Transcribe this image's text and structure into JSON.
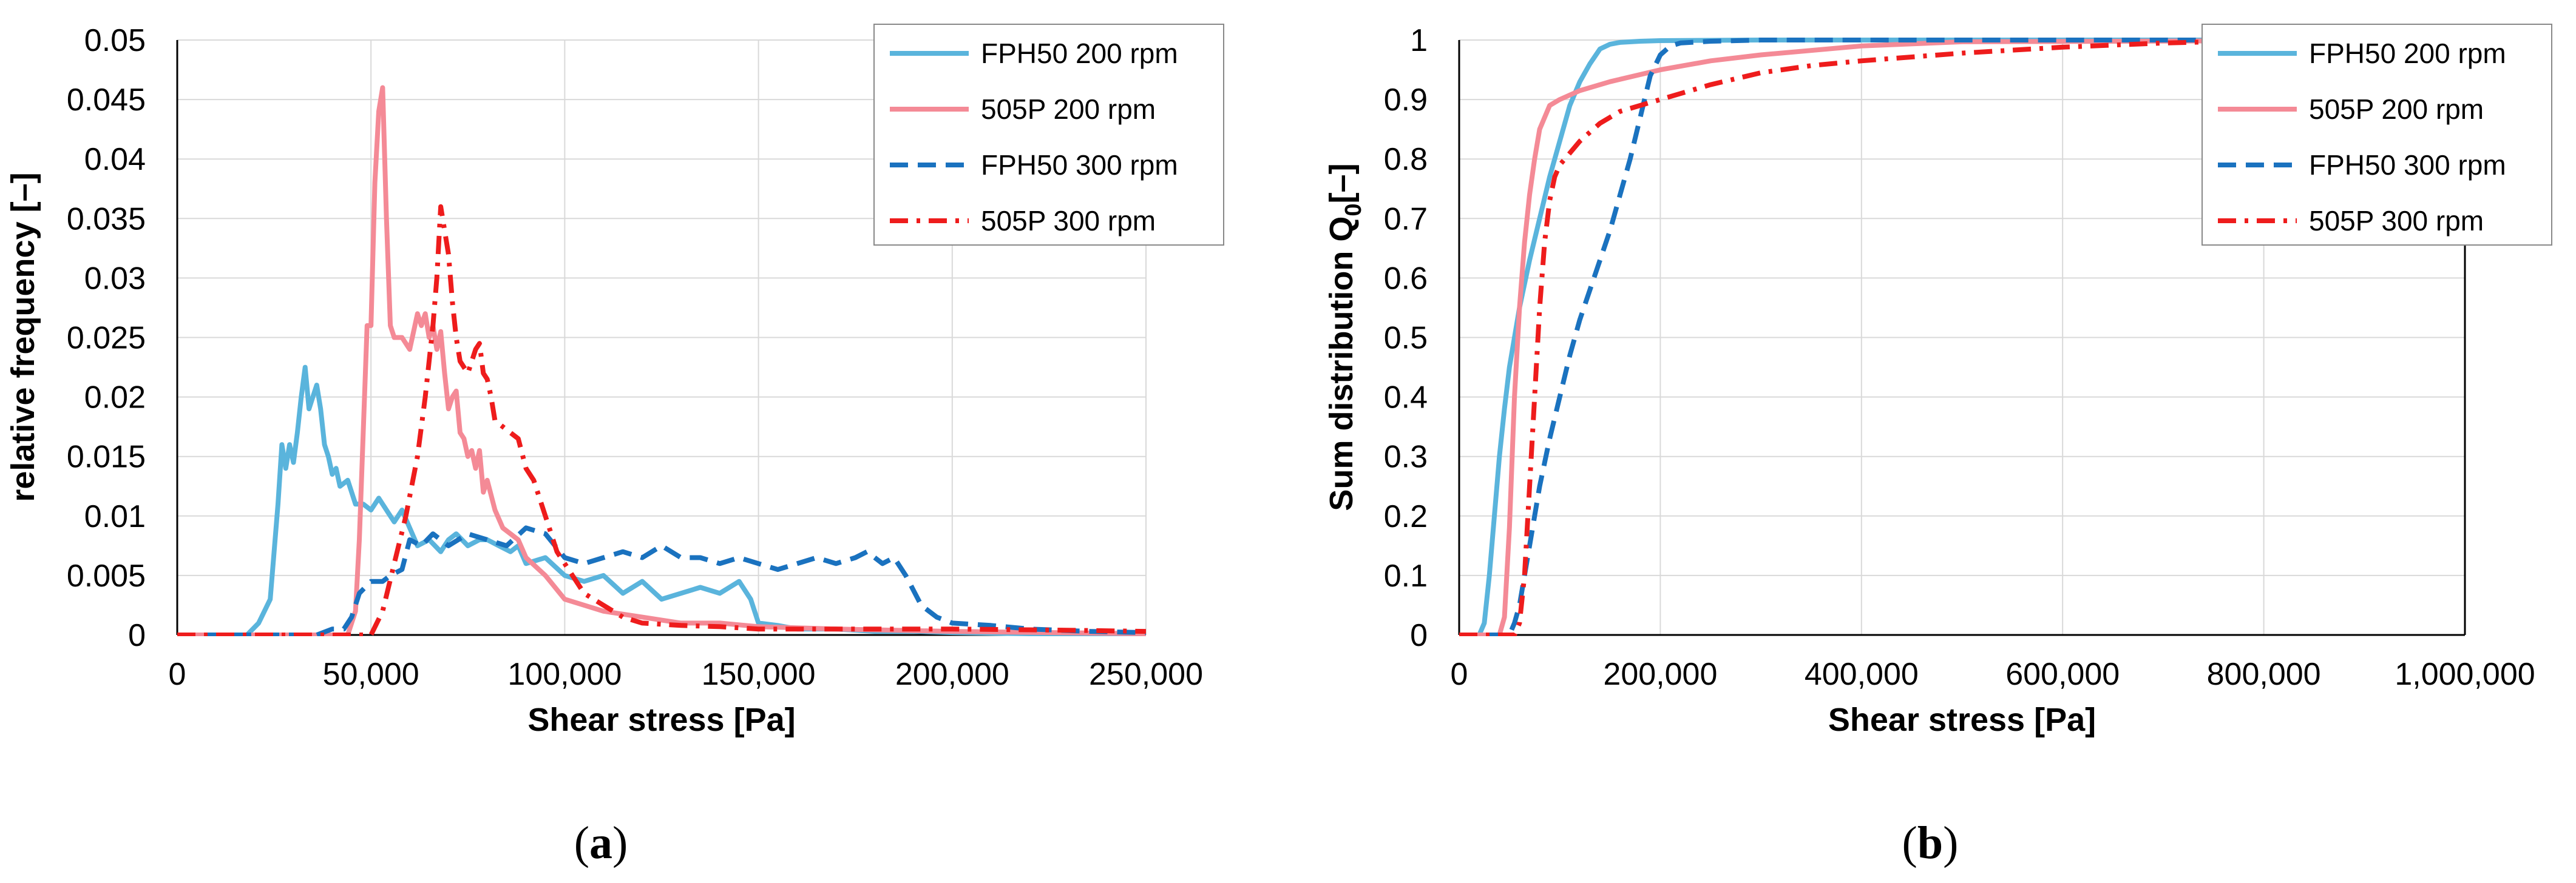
{
  "chart_data": [
    {
      "type": "line",
      "panel_label": "a",
      "xlabel": "Shear stress [Pa]",
      "ylabel": "relative frequency [–]",
      "xlim": [
        0,
        250000
      ],
      "ylim": [
        0,
        0.05
      ],
      "grid": true,
      "legend_position": "top-right",
      "x_ticks": [
        "0",
        "50,000",
        "100,000",
        "150,000",
        "200,000",
        "250,000"
      ],
      "x_tick_values": [
        0,
        50000,
        100000,
        150000,
        200000,
        250000
      ],
      "y_ticks": [
        "0",
        "0.005",
        "0.01",
        "0.015",
        "0.02",
        "0.025",
        "0.03",
        "0.035",
        "0.04",
        "0.045",
        "0.05"
      ],
      "y_tick_values": [
        0,
        0.005,
        0.01,
        0.015,
        0.02,
        0.025,
        0.03,
        0.035,
        0.04,
        0.045,
        0.05
      ],
      "series": [
        {
          "name": "FPH50 200 rpm",
          "color": "#5ab4dc",
          "dash": "solid",
          "x": [
            0,
            18000,
            21000,
            24000,
            26000,
            27000,
            28000,
            29000,
            30000,
            31000,
            32000,
            33000,
            34000,
            35000,
            36000,
            37000,
            38000,
            39000,
            40000,
            41000,
            42000,
            44000,
            46000,
            48000,
            50000,
            52000,
            54000,
            56000,
            58000,
            60000,
            62000,
            65000,
            68000,
            70000,
            72000,
            75000,
            78000,
            80000,
            83000,
            86000,
            88000,
            90000,
            95000,
            100000,
            105000,
            110000,
            115000,
            120000,
            125000,
            130000,
            135000,
            140000,
            145000,
            148000,
            150000,
            155000,
            160000,
            170000,
            180000,
            190000,
            200000,
            220000,
            250000
          ],
          "values": [
            0,
            0,
            0.001,
            0.003,
            0.011,
            0.016,
            0.014,
            0.016,
            0.0145,
            0.017,
            0.02,
            0.0225,
            0.019,
            0.02,
            0.021,
            0.019,
            0.016,
            0.015,
            0.0135,
            0.014,
            0.0125,
            0.013,
            0.011,
            0.011,
            0.0105,
            0.0115,
            0.0105,
            0.0095,
            0.0105,
            0.009,
            0.0075,
            0.008,
            0.007,
            0.008,
            0.0085,
            0.0075,
            0.008,
            0.008,
            0.0075,
            0.007,
            0.0075,
            0.006,
            0.0065,
            0.005,
            0.0045,
            0.005,
            0.0035,
            0.0045,
            0.003,
            0.0035,
            0.004,
            0.0035,
            0.0045,
            0.003,
            0.001,
            0.0008,
            0.0005,
            0.0005,
            0.0003,
            0.0003,
            0.0002,
            0.0001,
            0.0001
          ]
        },
        {
          "name": "505P 200 rpm",
          "color": "#f48a96",
          "dash": "solid",
          "x": [
            0,
            44000,
            46000,
            47000,
            48000,
            49000,
            50000,
            51000,
            52000,
            53000,
            54000,
            55000,
            56000,
            58000,
            60000,
            62000,
            63000,
            64000,
            65000,
            66000,
            67000,
            68000,
            69000,
            70000,
            71000,
            72000,
            73000,
            74000,
            75000,
            76000,
            77000,
            78000,
            79000,
            80000,
            82000,
            84000,
            86000,
            88000,
            90000,
            95000,
            100000,
            110000,
            120000,
            130000,
            140000,
            150000,
            170000,
            200000,
            250000
          ],
          "values": [
            0,
            0,
            0.002,
            0.008,
            0.017,
            0.026,
            0.026,
            0.038,
            0.044,
            0.046,
            0.035,
            0.026,
            0.025,
            0.025,
            0.024,
            0.027,
            0.026,
            0.027,
            0.025,
            0.026,
            0.024,
            0.0255,
            0.022,
            0.019,
            0.02,
            0.0205,
            0.017,
            0.0165,
            0.015,
            0.0155,
            0.014,
            0.0155,
            0.012,
            0.013,
            0.0105,
            0.009,
            0.0085,
            0.008,
            0.0065,
            0.005,
            0.003,
            0.002,
            0.0015,
            0.001,
            0.001,
            0.0007,
            0.0005,
            0.0003,
            0.0001
          ]
        },
        {
          "name": "FPH50 300 rpm",
          "color": "#1a72bf",
          "dash": "dashed",
          "x": [
            0,
            36000,
            40000,
            43000,
            45000,
            47000,
            50000,
            53000,
            55000,
            58000,
            60000,
            63000,
            66000,
            70000,
            75000,
            80000,
            85000,
            90000,
            95000,
            100000,
            105000,
            110000,
            115000,
            120000,
            125000,
            130000,
            135000,
            140000,
            145000,
            150000,
            155000,
            160000,
            165000,
            170000,
            175000,
            178000,
            182000,
            185000,
            188000,
            192000,
            196000,
            200000,
            210000,
            220000,
            235000,
            250000
          ],
          "values": [
            0,
            0,
            0.0005,
            0.0005,
            0.0015,
            0.0035,
            0.0045,
            0.0045,
            0.005,
            0.0055,
            0.008,
            0.0075,
            0.0085,
            0.0075,
            0.0085,
            0.008,
            0.0075,
            0.009,
            0.0085,
            0.0065,
            0.006,
            0.0065,
            0.007,
            0.0065,
            0.0075,
            0.0065,
            0.0065,
            0.006,
            0.0065,
            0.006,
            0.0055,
            0.006,
            0.0065,
            0.006,
            0.0065,
            0.007,
            0.006,
            0.0065,
            0.005,
            0.0025,
            0.0015,
            0.001,
            0.0008,
            0.0005,
            0.0003,
            0.0002
          ]
        },
        {
          "name": "505P 300 rpm",
          "color": "#ee1c1c",
          "dash": "dashdot",
          "x": [
            0,
            50000,
            53000,
            56000,
            59000,
            62000,
            64000,
            66000,
            67000,
            68000,
            69000,
            70000,
            71000,
            72000,
            73000,
            75000,
            77000,
            78000,
            79000,
            80000,
            81000,
            82000,
            84000,
            86000,
            88000,
            90000,
            92000,
            94000,
            96000,
            98000,
            100000,
            105000,
            110000,
            115000,
            120000,
            130000,
            140000,
            150000,
            170000,
            200000,
            230000,
            250000
          ],
          "values": [
            0,
            0,
            0.002,
            0.006,
            0.01,
            0.015,
            0.02,
            0.026,
            0.03,
            0.036,
            0.034,
            0.032,
            0.028,
            0.025,
            0.023,
            0.022,
            0.024,
            0.0245,
            0.022,
            0.0215,
            0.02,
            0.018,
            0.0175,
            0.017,
            0.0165,
            0.014,
            0.013,
            0.011,
            0.009,
            0.007,
            0.006,
            0.0035,
            0.0025,
            0.0015,
            0.001,
            0.0008,
            0.0007,
            0.0005,
            0.0005,
            0.0005,
            0.0004,
            0.0003
          ]
        }
      ]
    },
    {
      "type": "line",
      "panel_label": "b",
      "xlabel": "Shear stress [Pa]",
      "ylabel_main": "Sum distribution Q",
      "ylabel_sub": "0",
      "ylabel_end": "[–]",
      "xlim": [
        0,
        1000000
      ],
      "ylim": [
        0,
        1
      ],
      "grid": true,
      "legend_position": "top-right",
      "x_ticks": [
        "0",
        "200,000",
        "400,000",
        "600,000",
        "800,000",
        "1,000,000"
      ],
      "x_tick_values": [
        0,
        200000,
        400000,
        600000,
        800000,
        1000000
      ],
      "y_ticks": [
        "0",
        "0.1",
        "0.2",
        "0.3",
        "0.4",
        "0.5",
        "0.6",
        "0.7",
        "0.8",
        "0.9",
        "1"
      ],
      "y_tick_values": [
        0,
        0.1,
        0.2,
        0.3,
        0.4,
        0.5,
        0.6,
        0.7,
        0.8,
        0.9,
        1.0
      ],
      "series": [
        {
          "name": "FPH50 200 rpm",
          "color": "#5ab4dc",
          "dash": "solid",
          "x": [
            0,
            20000,
            25000,
            30000,
            35000,
            40000,
            45000,
            50000,
            60000,
            70000,
            80000,
            90000,
            100000,
            110000,
            120000,
            130000,
            140000,
            150000,
            160000,
            180000,
            200000,
            300000,
            1000000
          ],
          "values": [
            0,
            0,
            0.02,
            0.1,
            0.2,
            0.3,
            0.38,
            0.45,
            0.55,
            0.63,
            0.7,
            0.77,
            0.83,
            0.89,
            0.93,
            0.96,
            0.985,
            0.993,
            0.996,
            0.998,
            0.999,
            1.0,
            1.0
          ]
        },
        {
          "name": "505P 200 rpm",
          "color": "#f48a96",
          "dash": "solid",
          "x": [
            0,
            40000,
            45000,
            50000,
            55000,
            60000,
            65000,
            70000,
            75000,
            80000,
            90000,
            100000,
            120000,
            150000,
            200000,
            250000,
            300000,
            400000,
            500000,
            1000000
          ],
          "values": [
            0,
            0,
            0.03,
            0.18,
            0.4,
            0.55,
            0.66,
            0.74,
            0.8,
            0.85,
            0.89,
            0.9,
            0.915,
            0.93,
            0.95,
            0.965,
            0.975,
            0.99,
            0.997,
            1.0
          ]
        },
        {
          "name": "FPH50 300 rpm",
          "color": "#1a72bf",
          "dash": "dashed",
          "x": [
            0,
            50000,
            55000,
            60000,
            70000,
            80000,
            90000,
            100000,
            110000,
            120000,
            130000,
            140000,
            150000,
            160000,
            170000,
            180000,
            190000,
            200000,
            210000,
            220000,
            250000,
            300000,
            1000000
          ],
          "values": [
            0,
            0,
            0.02,
            0.05,
            0.15,
            0.25,
            0.33,
            0.4,
            0.47,
            0.53,
            0.58,
            0.63,
            0.68,
            0.74,
            0.8,
            0.87,
            0.94,
            0.975,
            0.99,
            0.995,
            0.998,
            1.0,
            1.0
          ]
        },
        {
          "name": "505P 300 rpm",
          "color": "#ee1c1c",
          "dash": "dashdot",
          "x": [
            0,
            55000,
            60000,
            65000,
            70000,
            75000,
            80000,
            85000,
            90000,
            95000,
            100000,
            110000,
            120000,
            140000,
            160000,
            200000,
            250000,
            300000,
            350000,
            400000,
            500000,
            600000,
            700000,
            750000,
            800000,
            1000000
          ],
          "values": [
            0,
            0,
            0.02,
            0.1,
            0.25,
            0.4,
            0.55,
            0.66,
            0.73,
            0.77,
            0.79,
            0.81,
            0.83,
            0.86,
            0.88,
            0.9,
            0.925,
            0.945,
            0.957,
            0.965,
            0.978,
            0.988,
            0.995,
            0.997,
            0.999,
            1.0
          ]
        }
      ]
    }
  ]
}
